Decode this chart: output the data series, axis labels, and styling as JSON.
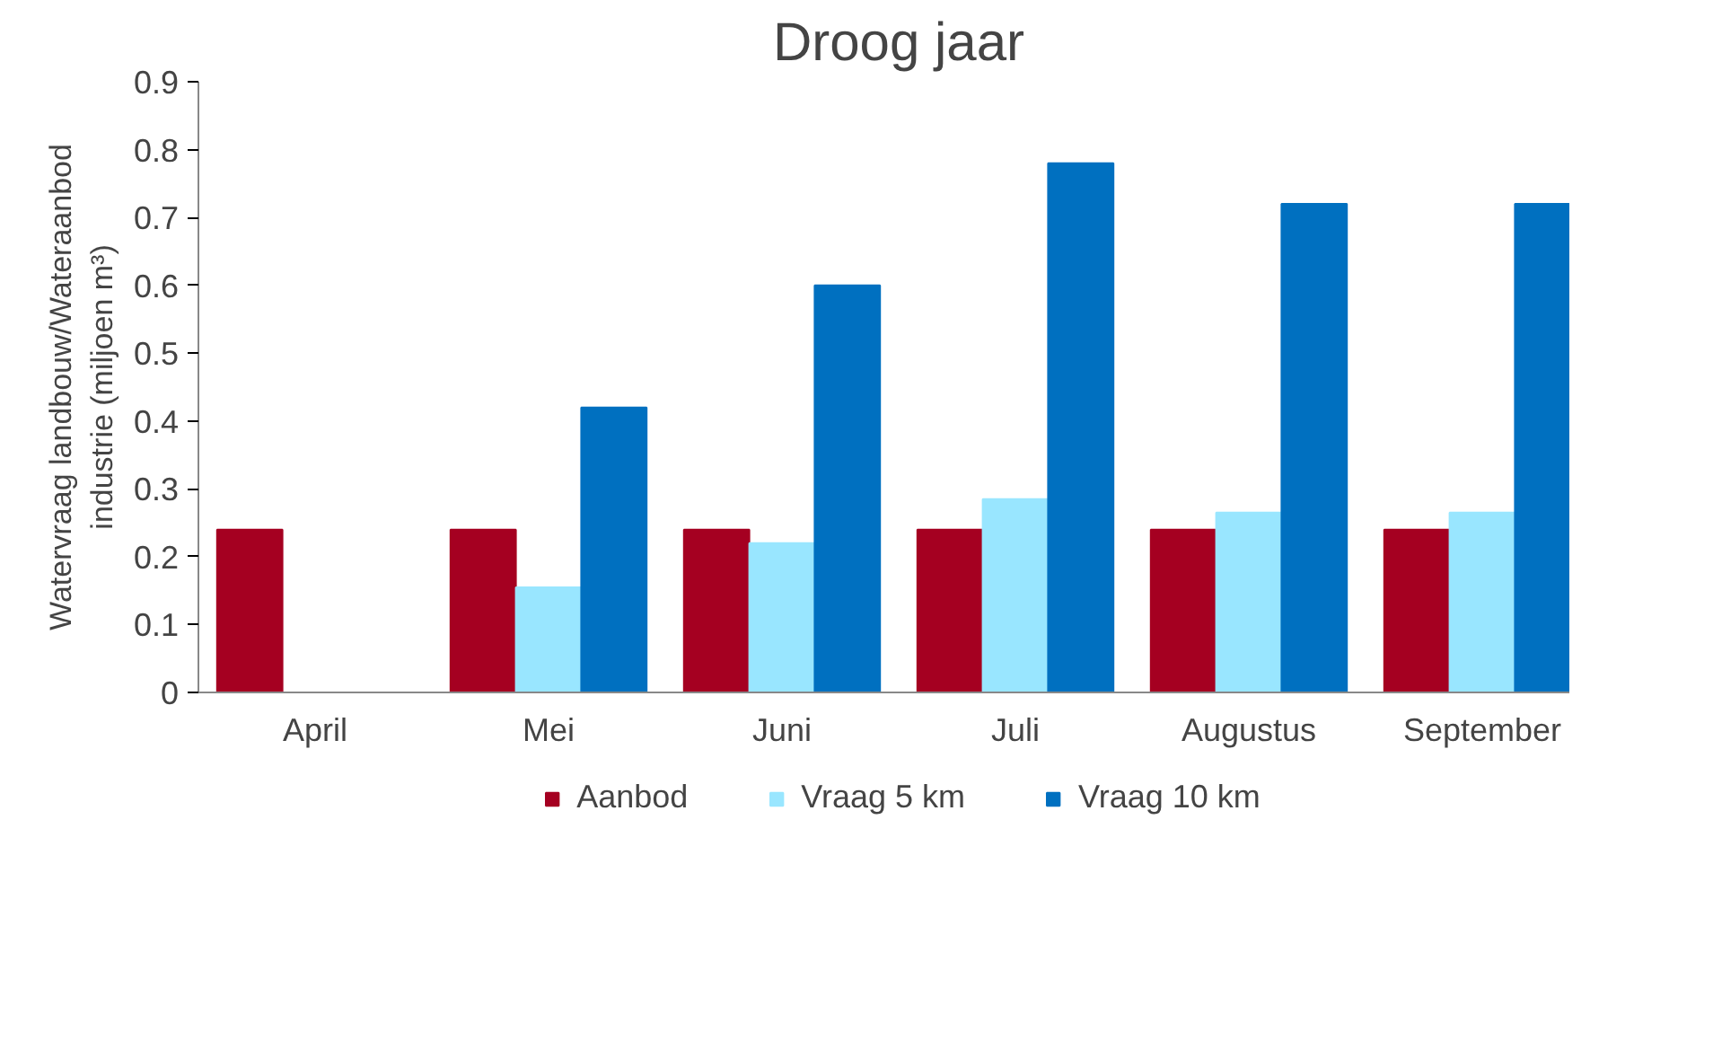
{
  "chart_data": {
    "type": "bar",
    "title": "Droog jaar",
    "ylabel": "Watervraag landbouw/Wateraanbod industrie (miljoen m³)",
    "categories": [
      "April",
      "Mei",
      "Juni",
      "Juli",
      "Augustus",
      "September"
    ],
    "series": [
      {
        "name": "Aanbod",
        "color": "#a50021",
        "values": [
          0.24,
          0.24,
          0.24,
          0.24,
          0.24,
          0.24
        ]
      },
      {
        "name": "Vraag 5 km",
        "color": "#99e6ff",
        "values": [
          null,
          0.155,
          0.22,
          0.285,
          0.265,
          0.265
        ]
      },
      {
        "name": "Vraag 10 km",
        "color": "#0070c0",
        "values": [
          null,
          0.42,
          0.6,
          0.78,
          0.72,
          0.72
        ]
      }
    ],
    "ylim": [
      0,
      0.9
    ],
    "yticks": [
      0,
      0.1,
      0.2,
      0.3,
      0.4,
      0.5,
      0.6,
      0.7,
      0.8,
      0.9
    ],
    "grid": false,
    "legend": "bottom"
  }
}
